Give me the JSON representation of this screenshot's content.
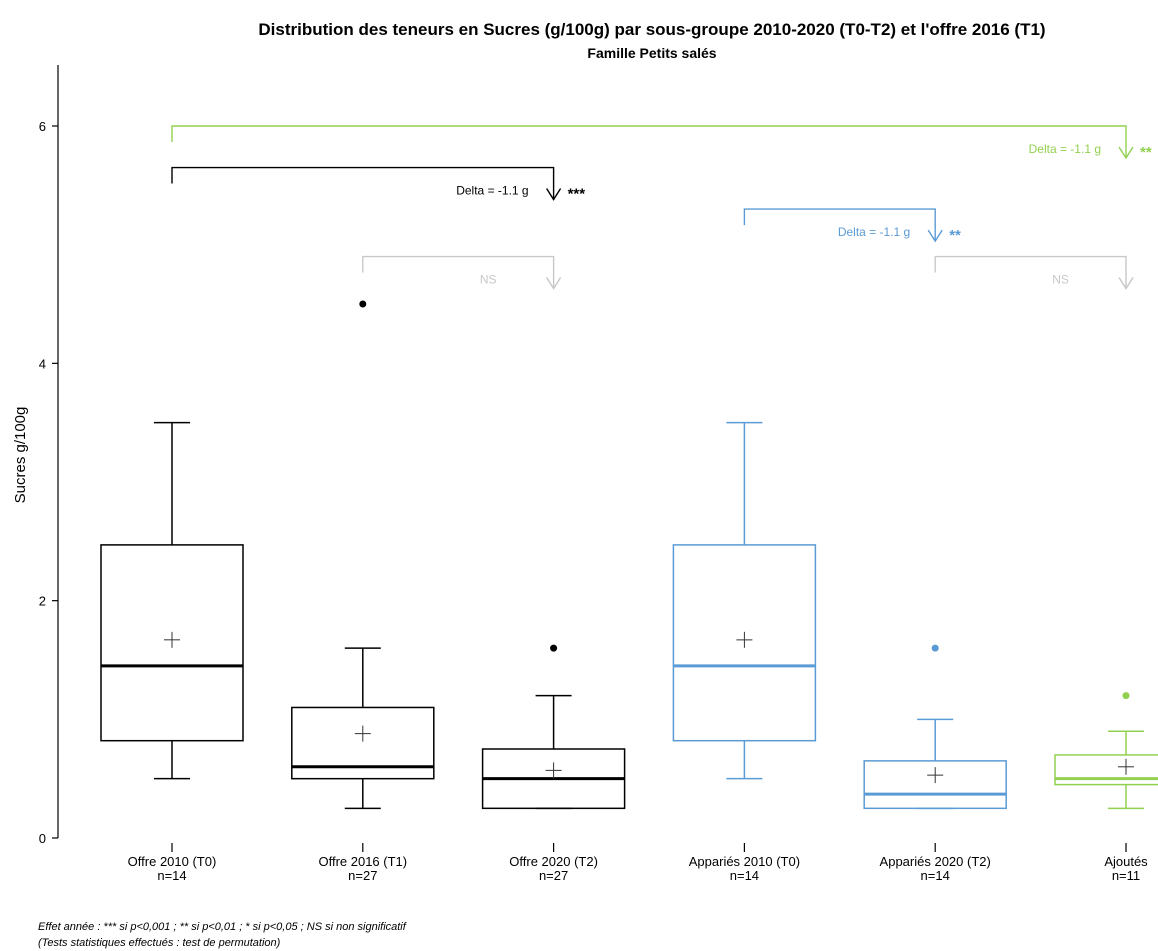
{
  "chart_data": {
    "type": "box",
    "title": "Distribution des teneurs en Sucres (g/100g) par sous-groupe 2010-2020 (T0-T2) et l'offre 2016 (T1)",
    "subtitle": "Famille Petits salés",
    "ylabel": "Sucres g/100g",
    "ylim": [
      0,
      6.5
    ],
    "yticks": [
      0,
      2,
      4,
      6
    ],
    "colors": {
      "black": "#000000",
      "blue": "#5b9bd5",
      "green": "#92d050",
      "gray": "#c8c8c8"
    },
    "groups": [
      {
        "label": "Offre 2010 (T0)",
        "n": "n=14",
        "color": "black",
        "q1": 0.82,
        "median": 1.45,
        "q3": 2.47,
        "whisker_low": 0.5,
        "whisker_high": 3.5,
        "mean": 1.67,
        "outliers": []
      },
      {
        "label": "Offre 2016 (T1)",
        "n": "n=27",
        "color": "black",
        "q1": 0.5,
        "median": 0.6,
        "q3": 1.1,
        "whisker_low": 0.25,
        "whisker_high": 1.6,
        "mean": 0.88,
        "outliers": [
          4.5
        ]
      },
      {
        "label": "Offre 2020 (T2)",
        "n": "n=27",
        "color": "black",
        "q1": 0.25,
        "median": 0.5,
        "q3": 0.75,
        "whisker_low": 0.25,
        "whisker_high": 1.2,
        "mean": 0.57,
        "outliers": [
          1.6
        ]
      },
      {
        "label": "Appariés 2010 (T0)",
        "n": "n=14",
        "color": "blue",
        "q1": 0.82,
        "median": 1.45,
        "q3": 2.47,
        "whisker_low": 0.5,
        "whisker_high": 3.5,
        "mean": 1.67,
        "outliers": []
      },
      {
        "label": "Appariés 2020 (T2)",
        "n": "n=14",
        "color": "blue",
        "q1": 0.25,
        "median": 0.37,
        "q3": 0.65,
        "whisker_low": 0.25,
        "whisker_high": 1.0,
        "mean": 0.53,
        "outliers": [
          1.6
        ]
      },
      {
        "label": "Ajoutés",
        "n": "n=11",
        "color": "green",
        "q1": 0.45,
        "median": 0.5,
        "q3": 0.7,
        "whisker_low": 0.25,
        "whisker_high": 0.9,
        "mean": 0.6,
        "outliers": [
          1.2
        ]
      }
    ],
    "comparisons": [
      {
        "from": 0,
        "to": 5,
        "level": 6.0,
        "color": "green",
        "delta": "Delta = -1.1 g",
        "sig": "**"
      },
      {
        "from": 0,
        "to": 2,
        "level": 5.65,
        "color": "black",
        "delta": "Delta = -1.1 g",
        "sig": "***"
      },
      {
        "from": 3,
        "to": 4,
        "level": 5.3,
        "color": "blue",
        "delta": "Delta = -1.1 g",
        "sig": "**"
      },
      {
        "from": 1,
        "to": 2,
        "level": 4.9,
        "color": "gray",
        "delta": "",
        "sig": "NS"
      },
      {
        "from": 4,
        "to": 5,
        "level": 4.9,
        "color": "gray",
        "delta": "",
        "sig": "NS"
      }
    ]
  },
  "footnotes": {
    "line1": "Effet année : *** si p<0,001 ; ** si p<0,01 ; * si p<0,05 ; NS si non significatif",
    "line2": "(Tests statistiques effectués : test de permutation)"
  }
}
